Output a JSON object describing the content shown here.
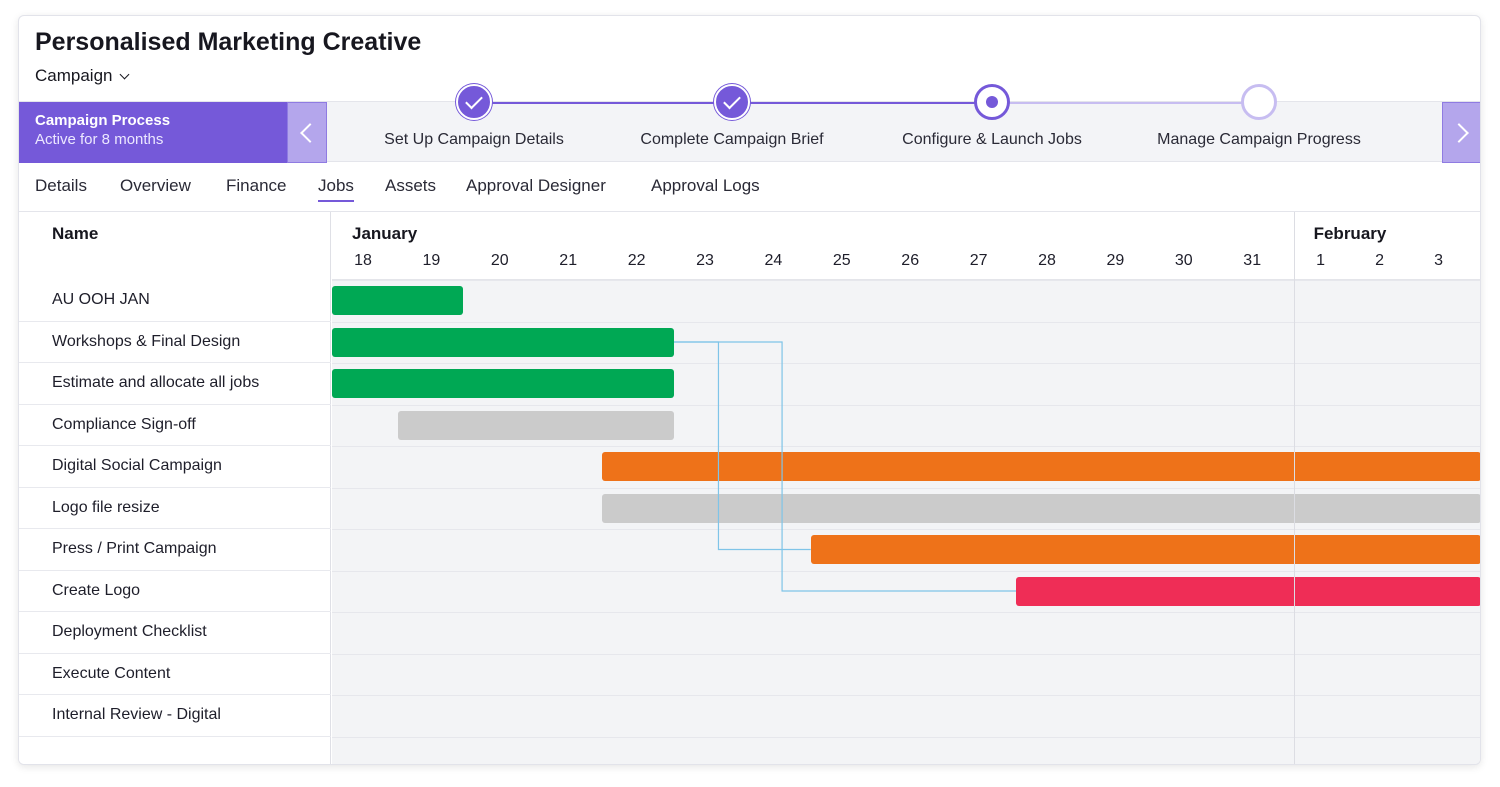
{
  "header": {
    "title": "Personalised Marketing Creative",
    "type_selector": "Campaign"
  },
  "process": {
    "title": "Campaign Process",
    "subtitle": "Active for 8 months",
    "steps": [
      {
        "label": "Set Up Campaign Details",
        "status": "done"
      },
      {
        "label": "Complete Campaign Brief",
        "status": "done"
      },
      {
        "label": "Configure & Launch Jobs",
        "status": "current"
      },
      {
        "label": "Manage Campaign Progress",
        "status": "todo"
      }
    ]
  },
  "tabs": [
    {
      "label": "Details",
      "active": false
    },
    {
      "label": "Overview",
      "active": false
    },
    {
      "label": "Finance",
      "active": false
    },
    {
      "label": "Jobs",
      "active": true
    },
    {
      "label": "Assets",
      "active": false
    },
    {
      "label": "Approval Designer",
      "active": false
    },
    {
      "label": "Approval Logs",
      "active": false
    }
  ],
  "gantt": {
    "name_header": "Name",
    "months": [
      {
        "label": "January"
      },
      {
        "label": "February"
      }
    ],
    "days": [
      {
        "label": "18"
      },
      {
        "label": "19"
      },
      {
        "label": "20"
      },
      {
        "label": "21"
      },
      {
        "label": "22"
      },
      {
        "label": "23"
      },
      {
        "label": "24"
      },
      {
        "label": "25"
      },
      {
        "label": "26"
      },
      {
        "label": "27"
      },
      {
        "label": "28"
      },
      {
        "label": "29"
      },
      {
        "label": "30"
      },
      {
        "label": "31"
      },
      {
        "label": "1"
      },
      {
        "label": "2"
      },
      {
        "label": "3"
      }
    ],
    "colors": {
      "complete": "#00a854",
      "not_started": "#cbcbcb",
      "in_progress": "#ee7219",
      "overdue": "#ef2d56",
      "link": "#7fc4e8"
    },
    "rows": [
      {
        "name": "AU OOH JAN",
        "bar": {
          "start": 0,
          "end": 1.92,
          "status": "complete"
        }
      },
      {
        "name": "Workshops & Final Design",
        "bar": {
          "start": 0,
          "end": 5.0,
          "status": "complete"
        }
      },
      {
        "name": "Estimate and allocate all jobs",
        "bar": {
          "start": 0,
          "end": 5.0,
          "status": "complete"
        }
      },
      {
        "name": "Compliance Sign-off",
        "bar": {
          "start": 0.97,
          "end": 5.0,
          "status": "not_started"
        }
      },
      {
        "name": "Digital Social Campaign",
        "bar": {
          "start": 3.95,
          "end": 16.8,
          "status": "in_progress"
        }
      },
      {
        "name": "Logo file resize",
        "bar": {
          "start": 3.95,
          "end": 16.8,
          "status": "not_started"
        }
      },
      {
        "name": "Press / Print Campaign",
        "bar": {
          "start": 7.0,
          "end": 16.8,
          "status": "in_progress"
        }
      },
      {
        "name": "Create Logo",
        "bar": {
          "start": 10.0,
          "end": 16.8,
          "status": "overdue"
        }
      },
      {
        "name": "Deployment Checklist",
        "bar": null
      },
      {
        "name": "Execute Content",
        "bar": null
      },
      {
        "name": "Internal Review - Digital",
        "bar": null
      }
    ],
    "dependencies": [
      {
        "from_row": 1,
        "to_row": 6,
        "via_day": 5.65
      },
      {
        "from_row": 1,
        "to_row": 7,
        "via_day": 6.58
      }
    ]
  }
}
